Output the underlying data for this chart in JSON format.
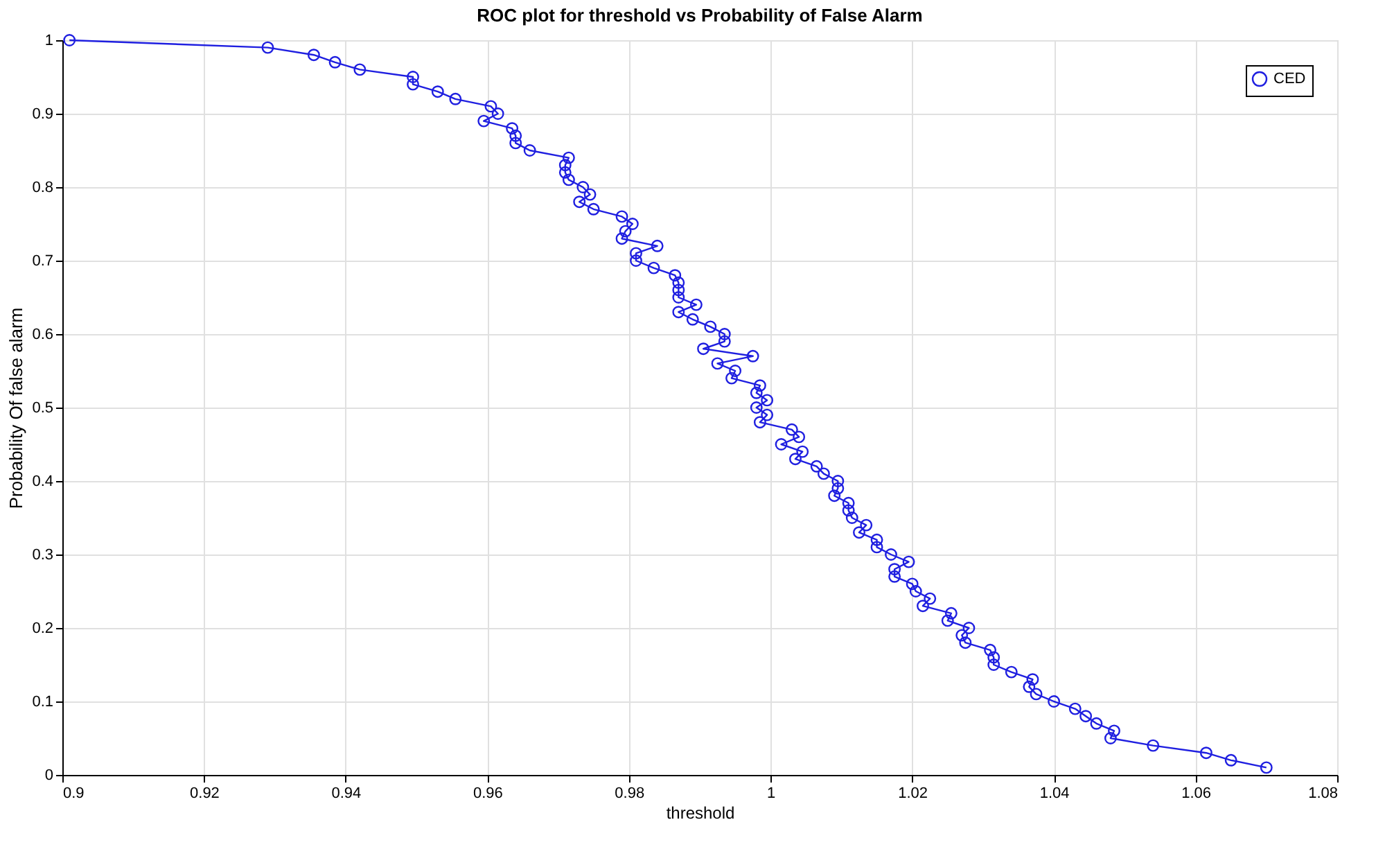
{
  "chart_data": {
    "type": "line",
    "title": "ROC plot for threshold vs Probability of False Alarm",
    "xlabel": "threshold",
    "ylabel": "Probability Of false alarm",
    "x": [
      0.901,
      0.929,
      0.9355,
      0.9385,
      0.942,
      0.9495,
      0.9495,
      0.953,
      0.9555,
      0.9605,
      0.9615,
      0.9595,
      0.9635,
      0.964,
      0.964,
      0.966,
      0.9715,
      0.971,
      0.971,
      0.9715,
      0.9735,
      0.9745,
      0.973,
      0.975,
      0.979,
      0.9805,
      0.9795,
      0.979,
      0.984,
      0.981,
      0.981,
      0.9835,
      0.9865,
      0.987,
      0.987,
      0.987,
      0.9895,
      0.987,
      0.989,
      0.9915,
      0.9935,
      0.9935,
      0.9905,
      0.9975,
      0.9925,
      0.995,
      0.9945,
      0.9985,
      0.998,
      0.9995,
      0.998,
      0.9995,
      0.9985,
      1.003,
      1.004,
      1.0015,
      1.0045,
      1.0035,
      1.0065,
      1.0075,
      1.0095,
      1.0095,
      1.009,
      1.011,
      1.011,
      1.0115,
      1.0135,
      1.0125,
      1.015,
      1.015,
      1.017,
      1.0195,
      1.0175,
      1.0175,
      1.02,
      1.0205,
      1.0225,
      1.0215,
      1.0255,
      1.025,
      1.028,
      1.027,
      1.0275,
      1.031,
      1.0315,
      1.0315,
      1.034,
      1.037,
      1.0365,
      1.0375,
      1.04,
      1.043,
      1.0445,
      1.046,
      1.0485,
      1.048,
      1.054,
      1.0615,
      1.065,
      1.07
    ],
    "series": [
      {
        "name": "CED",
        "color": "#1f1fe0",
        "values": [
          1.0,
          0.99,
          0.98,
          0.97,
          0.96,
          0.95,
          0.94,
          0.93,
          0.92,
          0.91,
          0.9,
          0.89,
          0.88,
          0.87,
          0.86,
          0.85,
          0.84,
          0.83,
          0.82,
          0.81,
          0.8,
          0.79,
          0.78,
          0.77,
          0.76,
          0.75,
          0.74,
          0.73,
          0.72,
          0.71,
          0.7,
          0.69,
          0.68,
          0.67,
          0.66,
          0.65,
          0.64,
          0.63,
          0.62,
          0.61,
          0.6,
          0.59,
          0.58,
          0.57,
          0.56,
          0.55,
          0.54,
          0.53,
          0.52,
          0.51,
          0.5,
          0.49,
          0.48,
          0.47,
          0.46,
          0.45,
          0.44,
          0.43,
          0.42,
          0.41,
          0.4,
          0.39,
          0.38,
          0.37,
          0.36,
          0.35,
          0.34,
          0.33,
          0.32,
          0.31,
          0.3,
          0.29,
          0.28,
          0.27,
          0.26,
          0.25,
          0.24,
          0.23,
          0.22,
          0.21,
          0.2,
          0.19,
          0.18,
          0.17,
          0.16,
          0.15,
          0.14,
          0.13,
          0.12,
          0.11,
          0.1,
          0.09,
          0.08,
          0.07,
          0.06,
          0.05,
          0.04,
          0.03,
          0.02,
          0.01
        ]
      }
    ],
    "xlim": [
      0.9,
      1.08
    ],
    "xticks": [
      0.9,
      0.92,
      0.94,
      0.96,
      0.98,
      1,
      1.02,
      1.04,
      1.06,
      1.08
    ],
    "ylim": [
      0,
      1
    ],
    "yticks": [
      0,
      0.1,
      0.2,
      0.3,
      0.4,
      0.5,
      0.6,
      0.7,
      0.8,
      0.9,
      1
    ],
    "grid": true,
    "legend": "top right",
    "marker": "circle",
    "line_style": "solid"
  }
}
